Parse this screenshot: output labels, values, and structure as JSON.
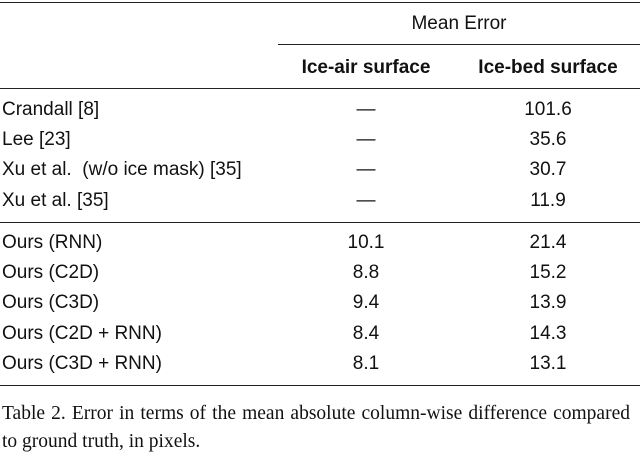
{
  "table": {
    "group_header": "Mean Error",
    "columns": [
      "Ice-air surface",
      "Ice-bed surface"
    ],
    "sections": [
      [
        [
          "Crandall [8]",
          "—",
          101.6
        ],
        [
          "Lee [23]",
          "—",
          35.6
        ],
        [
          "Xu et al.  (w/o ice mask) [35]",
          "—",
          30.7
        ],
        [
          "Xu et al. [35]",
          "—",
          11.9
        ]
      ],
      [
        [
          "Ours (RNN)",
          10.1,
          21.4
        ],
        [
          "Ours (C2D)",
          8.8,
          15.2
        ],
        [
          "Ours (C3D)",
          9.4,
          13.9
        ],
        [
          "Ours (C2D + RNN)",
          8.4,
          14.3
        ],
        [
          "Ours (C3D + RNN)",
          8.1,
          13.1
        ]
      ]
    ]
  },
  "caption": "Table 2. Error in terms of the mean absolute column-wise difference compared to ground truth, in pixels."
}
